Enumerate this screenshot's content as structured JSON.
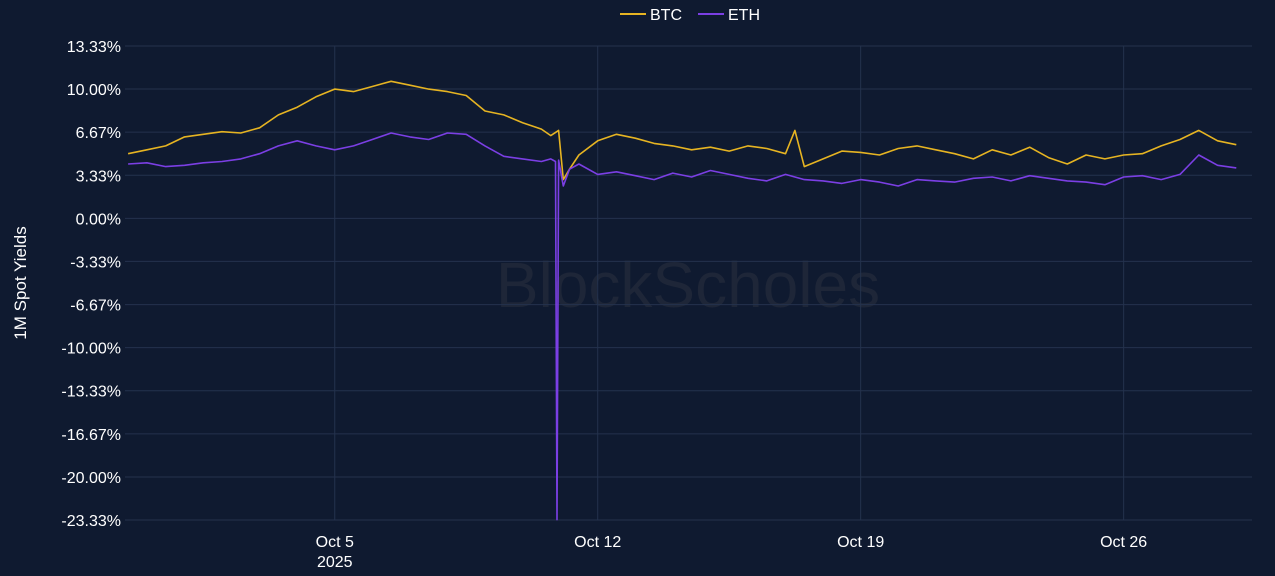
{
  "colors": {
    "background": "#0f1a30",
    "grid": "#24324d",
    "text": "#ffffff",
    "watermark": "#1e2638"
  },
  "watermark": "BlockScholes",
  "chart_data": {
    "type": "line",
    "ylabel": "1M Spot Yields",
    "ylim": [
      -23.33,
      13.33
    ],
    "xlim": [
      "2025-09-29T10:00",
      "2025-10-29T10:00"
    ],
    "y_ticks": [
      13.33,
      10.0,
      6.67,
      3.33,
      0.0,
      -3.33,
      -6.67,
      -10.0,
      -13.33,
      -16.67,
      -20.0,
      -23.33
    ],
    "y_tick_labels": [
      "13.33%",
      "10.00%",
      "6.67%",
      "3.33%",
      "0.00%",
      "-3.33%",
      "-6.67%",
      "-10.00%",
      "-13.33%",
      "-16.67%",
      "-20.00%",
      "-23.33%"
    ],
    "x_ticks": [
      {
        "date": "2025-10-05",
        "label": "Oct 5",
        "sublabel": "2025"
      },
      {
        "date": "2025-10-12",
        "label": "Oct 12",
        "sublabel": ""
      },
      {
        "date": "2025-10-19",
        "label": "Oct 19",
        "sublabel": ""
      },
      {
        "date": "2025-10-26",
        "label": "Oct 26",
        "sublabel": ""
      }
    ],
    "grid": true,
    "legend_position": "top-center",
    "series": [
      {
        "name": "BTC",
        "color": "#e6b422",
        "x": [
          "2025-09-29T12:00",
          "2025-09-30T00:00",
          "2025-09-30T12:00",
          "2025-10-01T00:00",
          "2025-10-01T12:00",
          "2025-10-02T00:00",
          "2025-10-02T12:00",
          "2025-10-03T00:00",
          "2025-10-03T12:00",
          "2025-10-04T00:00",
          "2025-10-04T12:00",
          "2025-10-05T00:00",
          "2025-10-05T12:00",
          "2025-10-06T00:00",
          "2025-10-06T12:00",
          "2025-10-07T00:00",
          "2025-10-07T12:00",
          "2025-10-08T00:00",
          "2025-10-08T12:00",
          "2025-10-09T00:00",
          "2025-10-09T12:00",
          "2025-10-10T00:00",
          "2025-10-10T12:00",
          "2025-10-10T18:00",
          "2025-10-10T23:00",
          "2025-10-11T02:00",
          "2025-10-11T06:00",
          "2025-10-11T12:00",
          "2025-10-12T00:00",
          "2025-10-12T12:00",
          "2025-10-13T00:00",
          "2025-10-13T12:00",
          "2025-10-14T00:00",
          "2025-10-14T12:00",
          "2025-10-15T00:00",
          "2025-10-15T12:00",
          "2025-10-16T00:00",
          "2025-10-16T12:00",
          "2025-10-17T00:00",
          "2025-10-17T06:00",
          "2025-10-17T12:00",
          "2025-10-18T00:00",
          "2025-10-18T12:00",
          "2025-10-19T00:00",
          "2025-10-19T12:00",
          "2025-10-20T00:00",
          "2025-10-20T12:00",
          "2025-10-21T00:00",
          "2025-10-21T12:00",
          "2025-10-22T00:00",
          "2025-10-22T12:00",
          "2025-10-23T00:00",
          "2025-10-23T12:00",
          "2025-10-24T00:00",
          "2025-10-24T12:00",
          "2025-10-25T00:00",
          "2025-10-25T12:00",
          "2025-10-26T00:00",
          "2025-10-26T12:00",
          "2025-10-27T00:00",
          "2025-10-27T12:00",
          "2025-10-28T00:00",
          "2025-10-28T12:00",
          "2025-10-29T00:00"
        ],
        "values": [
          5.0,
          5.3,
          5.6,
          6.3,
          6.5,
          6.7,
          6.6,
          7.0,
          8.0,
          8.6,
          9.4,
          10.0,
          9.8,
          10.2,
          10.6,
          10.3,
          10.0,
          9.8,
          9.5,
          8.3,
          8.0,
          7.4,
          6.9,
          6.4,
          6.8,
          3.0,
          3.8,
          4.9,
          6.0,
          6.5,
          6.2,
          5.8,
          5.6,
          5.3,
          5.5,
          5.2,
          5.6,
          5.4,
          5.0,
          6.8,
          4.0,
          4.6,
          5.2,
          5.1,
          4.9,
          5.4,
          5.6,
          5.3,
          5.0,
          4.6,
          5.3,
          4.9,
          5.5,
          4.7,
          4.2,
          4.9,
          4.6,
          4.9,
          5.0,
          5.6,
          6.1,
          6.8,
          6.0,
          5.7
        ]
      },
      {
        "name": "ETH",
        "color": "#7b3fe4",
        "x": [
          "2025-09-29T12:00",
          "2025-09-30T00:00",
          "2025-09-30T12:00",
          "2025-10-01T00:00",
          "2025-10-01T12:00",
          "2025-10-02T00:00",
          "2025-10-02T12:00",
          "2025-10-03T00:00",
          "2025-10-03T12:00",
          "2025-10-04T00:00",
          "2025-10-04T12:00",
          "2025-10-05T00:00",
          "2025-10-05T12:00",
          "2025-10-06T00:00",
          "2025-10-06T12:00",
          "2025-10-07T00:00",
          "2025-10-07T12:00",
          "2025-10-08T00:00",
          "2025-10-08T12:00",
          "2025-10-09T00:00",
          "2025-10-09T12:00",
          "2025-10-10T00:00",
          "2025-10-10T12:00",
          "2025-10-10T18:00",
          "2025-10-10T21:00",
          "2025-10-10T22:00",
          "2025-10-10T23:00",
          "2025-10-11T02:00",
          "2025-10-11T06:00",
          "2025-10-11T12:00",
          "2025-10-12T00:00",
          "2025-10-12T12:00",
          "2025-10-13T00:00",
          "2025-10-13T12:00",
          "2025-10-14T00:00",
          "2025-10-14T12:00",
          "2025-10-15T00:00",
          "2025-10-15T12:00",
          "2025-10-16T00:00",
          "2025-10-16T12:00",
          "2025-10-17T00:00",
          "2025-10-17T12:00",
          "2025-10-18T00:00",
          "2025-10-18T12:00",
          "2025-10-19T00:00",
          "2025-10-19T12:00",
          "2025-10-20T00:00",
          "2025-10-20T12:00",
          "2025-10-21T00:00",
          "2025-10-21T12:00",
          "2025-10-22T00:00",
          "2025-10-22T12:00",
          "2025-10-23T00:00",
          "2025-10-23T12:00",
          "2025-10-24T00:00",
          "2025-10-24T12:00",
          "2025-10-25T00:00",
          "2025-10-25T12:00",
          "2025-10-26T00:00",
          "2025-10-26T12:00",
          "2025-10-27T00:00",
          "2025-10-27T12:00",
          "2025-10-28T00:00",
          "2025-10-28T12:00",
          "2025-10-29T00:00"
        ],
        "values": [
          4.2,
          4.3,
          4.0,
          4.1,
          4.3,
          4.4,
          4.6,
          5.0,
          5.6,
          6.0,
          5.6,
          5.3,
          5.6,
          6.1,
          6.6,
          6.3,
          6.1,
          6.6,
          6.5,
          5.6,
          4.8,
          4.6,
          4.4,
          4.6,
          4.4,
          -23.3,
          4.5,
          2.5,
          3.8,
          4.2,
          3.4,
          3.6,
          3.3,
          3.0,
          3.5,
          3.2,
          3.7,
          3.4,
          3.1,
          2.9,
          3.4,
          3.0,
          2.9,
          2.7,
          3.0,
          2.8,
          2.5,
          3.0,
          2.9,
          2.8,
          3.1,
          3.2,
          2.9,
          3.3,
          3.1,
          2.9,
          2.8,
          2.6,
          3.2,
          3.3,
          3.0,
          3.4,
          4.9,
          4.1,
          3.9
        ]
      }
    ]
  }
}
